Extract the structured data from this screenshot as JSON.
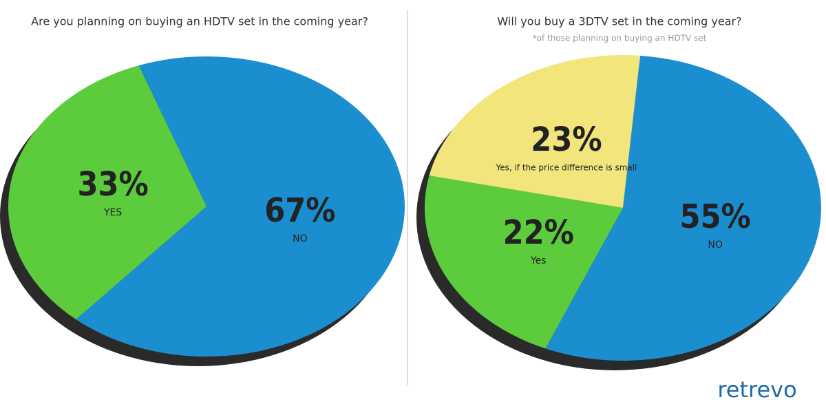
{
  "chart_data": [
    {
      "type": "pie",
      "title": "Are you planning on buying an HDTV set in the coming year?",
      "categories": [
        "NO",
        "YES"
      ],
      "values": [
        67,
        33
      ],
      "value_labels": [
        "67%",
        "33%"
      ],
      "colors": [
        "#1b8ed0",
        "#5ccb3c"
      ]
    },
    {
      "type": "pie",
      "title": "Will you buy a 3DTV set in the coming year?",
      "subtitle": "*of those planning on buying an HDTV set",
      "categories": [
        "NO",
        "Yes",
        "Yes, if the price difference is small"
      ],
      "values": [
        55,
        22,
        23
      ],
      "value_labels": [
        "55%",
        "22%",
        "23%"
      ],
      "colors": [
        "#1b8ed0",
        "#5ccb3c",
        "#f1e57c"
      ]
    }
  ],
  "logo": "retrevo"
}
